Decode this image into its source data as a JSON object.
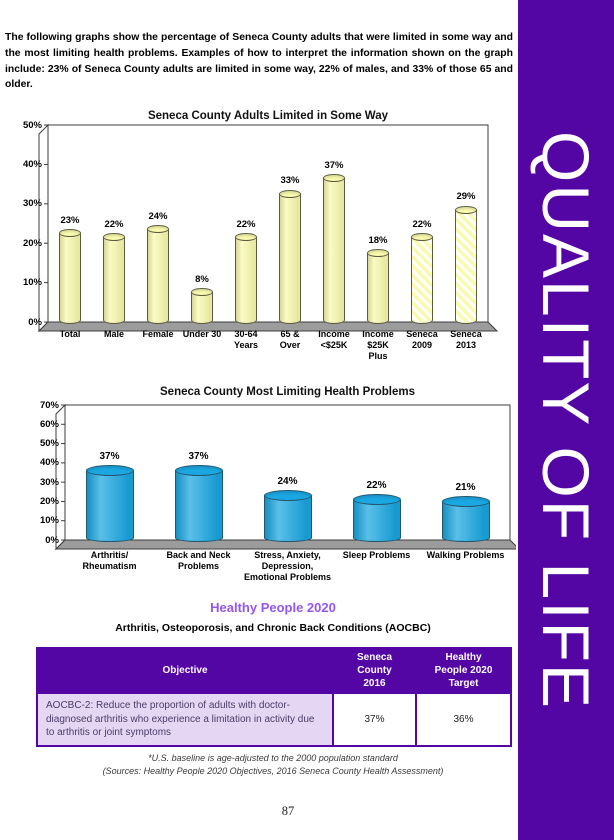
{
  "page": {
    "number": "87"
  },
  "sidebar": {
    "label": "QUALITY OF LIFE",
    "bg_color": "#5406A5",
    "text_color": "#FFFFFF"
  },
  "intro": {
    "text": "The following graphs show the percentage of Seneca County adults that were limited in some way and the most limiting health problems. Examples of how to interpret the information shown on the graph include: 23% of Seneca County adults are limited in some way, 22% of males, and 33% of those 65 and older."
  },
  "chart_data": [
    {
      "type": "bar",
      "title": "Seneca County Adults Limited in Some Way",
      "categories": [
        "Total",
        "Male",
        "Female",
        "Under 30",
        "30-64\nYears",
        "65 &\nOver",
        "Income\n<$25K",
        "Income\n$25K\nPlus",
        "Seneca\n2009",
        "Seneca\n2013"
      ],
      "values": [
        23,
        22,
        24,
        8,
        22,
        33,
        37,
        18,
        22,
        29
      ],
      "labels": [
        "23%",
        "22%",
        "24%",
        "8%",
        "22%",
        "33%",
        "37%",
        "18%",
        "22%",
        "29%"
      ],
      "hatched": [
        false,
        false,
        false,
        false,
        false,
        false,
        false,
        false,
        true,
        true
      ],
      "xlabel": "",
      "ylabel": "",
      "ylim": [
        0,
        50
      ],
      "ytick_step": 10,
      "grid": false,
      "legend": "none",
      "bar_color": "#F9FAAE",
      "bar_edge": "#5c5c40",
      "style": "3d-cylinder"
    },
    {
      "type": "bar",
      "title": "Seneca County Most Limiting Health Problems",
      "categories": [
        "Arthritis/\nRheumatism",
        "Back and Neck\nProblems",
        "Stress, Anxiety,\nDepression,\nEmotional Problems",
        "Sleep Problems",
        "Walking Problems"
      ],
      "values": [
        37,
        37,
        24,
        22,
        21
      ],
      "labels": [
        "37%",
        "37%",
        "24%",
        "22%",
        "21%"
      ],
      "hatched": [
        false,
        false,
        false,
        false,
        false
      ],
      "xlabel": "",
      "ylabel": "",
      "ylim": [
        0,
        70
      ],
      "ytick_step": 10,
      "grid": false,
      "legend": "none",
      "bar_color": "#1BA7E1",
      "bar_edge": "#24566e",
      "style": "3d-cylinder"
    }
  ],
  "healthy_people": {
    "heading": "Healthy People 2020",
    "heading_color": "#9357EF",
    "subheading": "Arthritis, Osteoporosis, and Chronic Back Conditions (AOCBC)"
  },
  "table": {
    "header_bg": "#5406A5",
    "row_bg": "#E5D7F4",
    "headers": [
      "Objective",
      "Seneca\nCounty\n2016",
      "Healthy\nPeople 2020\nTarget"
    ],
    "rows": [
      {
        "objective": "AOCBC-2: Reduce the proportion of adults with doctor-diagnosed arthritis who experience a limitation in activity due to arthritis or joint symptoms",
        "seneca_2016": "37%",
        "target": "36%"
      }
    ]
  },
  "footnote": {
    "line1": "*U.S. baseline is age-adjusted to the 2000 population standard",
    "line2": "(Sources: Healthy People 2020 Objectives, 2016 Seneca County Health Assessment)"
  }
}
